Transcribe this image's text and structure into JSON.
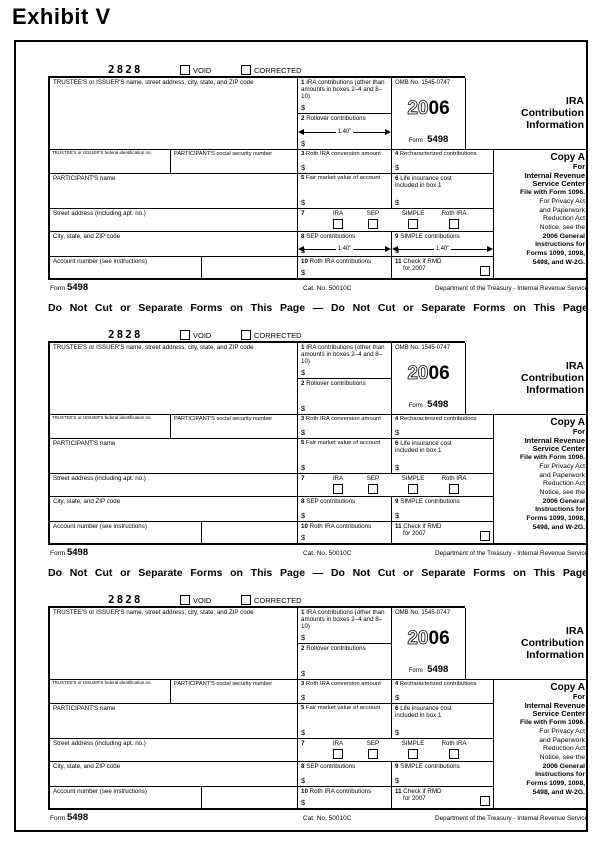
{
  "page": {
    "exhibit_title": "Exhibit V"
  },
  "colors": {
    "ink": "#000000",
    "paper": "#ffffff"
  },
  "separator_text": "Do Not Cut or Separate Forms on This Page — Do Not Cut or Separate Forms on This Page",
  "form": {
    "code": "2828",
    "void_label": "VOID",
    "corrected_label": "CORRECTED",
    "trustee_name_label": "TRUSTEE'S or ISSUER'S name, street address, city, state, and ZIP code",
    "dollar": "$",
    "arrow_label": "1.40\"",
    "box1": {
      "num": "1",
      "label": "IRA contributions (other than amounts in boxes 2–4 and 8–10)"
    },
    "box2": {
      "num": "2",
      "label": "Rollover contributions"
    },
    "omb_label": "OMB No. 1545-0747",
    "year_prefix": "20",
    "year_suffix": "06",
    "form_word": "Form",
    "form_number": "5498",
    "ira_title_l1": "IRA",
    "ira_title_l2": "Contribution",
    "ira_title_l3": "Information",
    "fedid_label": "TRUSTEE'S or ISSUER'S federal identification no.",
    "ssn_label": "PARTICIPANT'S social security number",
    "box3": {
      "num": "3",
      "label": "Roth IRA conversion amount"
    },
    "box4": {
      "num": "4",
      "label": "Recharacterized contributions"
    },
    "participant_name_label": "PARTICIPANT'S name",
    "box5": {
      "num": "5",
      "label": "Fair market value of account"
    },
    "box6": {
      "num": "6",
      "label": "Life insurance cost included in box 1"
    },
    "street_label": "Street address (including apt. no.)",
    "box7": {
      "num": "7",
      "opt_ira": "IRA",
      "opt_sep": "SEP",
      "opt_simple": "SIMPLE",
      "opt_roth": "Roth IRA"
    },
    "city_label": "City, state, and ZIP code",
    "box8": {
      "num": "8",
      "label": "SEP contributions"
    },
    "box9": {
      "num": "9",
      "label": "SIMPLE contributions"
    },
    "account_label": "Account number (see instructions)",
    "box10": {
      "num": "10",
      "label": "Roth IRA contributions"
    },
    "box11": {
      "num": "11",
      "label_l1": "Check if RMD",
      "label_l2": "for 2007"
    },
    "copy_a": {
      "l1": "Copy A",
      "l2": "For",
      "l3": "Internal Revenue",
      "l4": "Service Center",
      "l5": "File with Form 1096.",
      "l6": "For Privacy Act",
      "l7": "and Paperwork",
      "l8": "Reduction Act",
      "l9": "Notice, see the",
      "l10": "2006 General",
      "l11": "Instructions for",
      "l12": "Forms 1099, 1098,",
      "l13": "5498, and W-2G."
    },
    "footer": {
      "form_word": "Form",
      "form_number": "5498",
      "cat_no": "Cat. No. 50010C",
      "dept": "Department of the Treasury - Internal Revenue Service"
    }
  },
  "copies": [
    {
      "name": "form-copy-1",
      "show_arrows": true,
      "show_separator": true
    },
    {
      "name": "form-copy-2",
      "show_arrows": false,
      "show_separator": true
    },
    {
      "name": "form-copy-3",
      "show_arrows": false,
      "show_separator": false
    }
  ]
}
